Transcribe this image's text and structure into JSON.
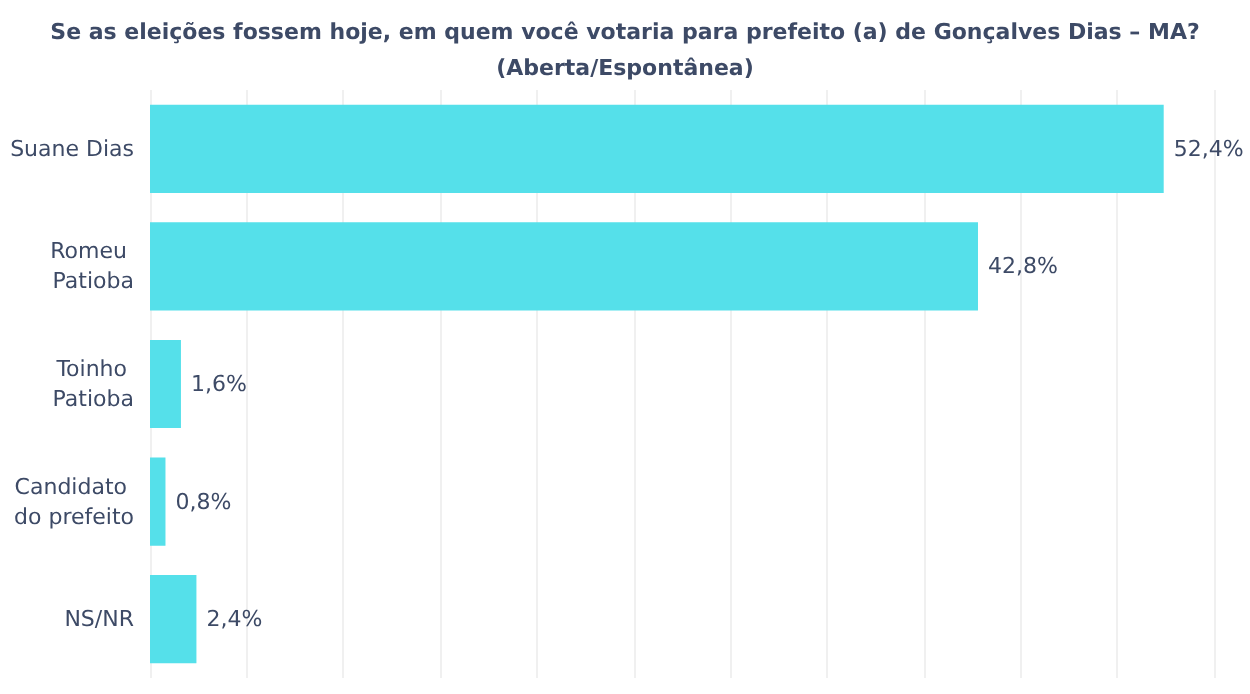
{
  "chart_data": {
    "type": "bar",
    "orientation": "horizontal",
    "title": "Se as eleições fossem hoje, em quem você votaria para prefeito (a) de Gonçalves Dias – MA?\n(Aberta/Espontânea)",
    "categories": [
      "Suane Dias",
      "Romeu Patioba",
      "Toinho Patioba",
      "Candidato do prefeito",
      "NS/NR"
    ],
    "values": [
      52.4,
      42.8,
      1.6,
      0.8,
      2.4
    ],
    "value_labels": [
      "52,4%",
      "42,8%",
      "1,6%",
      "0,8%",
      "2,4%"
    ],
    "color": "#55e0ea",
    "xlim": [
      0,
      55
    ],
    "xticks": [
      {
        "value": 0,
        "label": null
      },
      {
        "value": 5,
        "label": null
      },
      {
        "value": 10,
        "label": null
      },
      {
        "value": 15,
        "label": null
      },
      {
        "value": 20,
        "label": null
      },
      {
        "value": 25,
        "label": null
      },
      {
        "value": 30,
        "label": null
      },
      {
        "value": 35,
        "label": null
      },
      {
        "value": 40,
        "label": null
      },
      {
        "value": 45,
        "label": null
      },
      {
        "value": 50,
        "label": null
      },
      {
        "value": 55,
        "label": null
      }
    ],
    "grid": "x",
    "tick_labels": "y"
  }
}
